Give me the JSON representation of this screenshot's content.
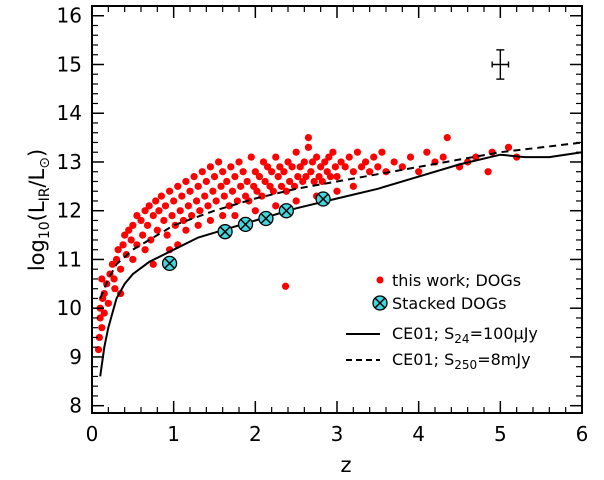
{
  "chart_data": {
    "type": "scatter",
    "xlabel": "z",
    "ylabel_parts": {
      "prefix": "log",
      "sub10": "10",
      "open": "(L",
      "subIR": "IR",
      "slash": "/L",
      "sun": "⊙",
      "close": ")"
    },
    "xlim": [
      0,
      6
    ],
    "ylim": [
      7.85,
      16.2
    ],
    "xticks": [
      "0",
      "1",
      "2",
      "3",
      "4",
      "5",
      "6"
    ],
    "yticks": [
      "8",
      "9",
      "10",
      "11",
      "12",
      "13",
      "14",
      "15",
      "16"
    ],
    "colors": {
      "dogs": "#ff0000",
      "stacked_fill": "#40d8e0",
      "line": "#000000"
    },
    "series": [
      {
        "name": "this work; DOGs",
        "style": "red-filled-circle",
        "points": [
          [
            0.08,
            9.15
          ],
          [
            0.09,
            9.4
          ],
          [
            0.1,
            9.8
          ],
          [
            0.1,
            10.0
          ],
          [
            0.12,
            9.6
          ],
          [
            0.13,
            10.2
          ],
          [
            0.15,
            10.3
          ],
          [
            0.18,
            10.5
          ],
          [
            0.2,
            10.1
          ],
          [
            0.22,
            10.7
          ],
          [
            0.25,
            10.9
          ],
          [
            0.27,
            10.6
          ],
          [
            0.3,
            11.0
          ],
          [
            0.32,
            11.2
          ],
          [
            0.35,
            10.8
          ],
          [
            0.38,
            11.3
          ],
          [
            0.4,
            11.5
          ],
          [
            0.42,
            11.1
          ],
          [
            0.45,
            11.6
          ],
          [
            0.48,
            11.4
          ],
          [
            0.5,
            11.7
          ],
          [
            0.5,
            11.0
          ],
          [
            0.55,
            11.9
          ],
          [
            0.55,
            11.3
          ],
          [
            0.6,
            11.8
          ],
          [
            0.62,
            11.5
          ],
          [
            0.65,
            12.0
          ],
          [
            0.68,
            11.7
          ],
          [
            0.7,
            12.1
          ],
          [
            0.72,
            11.4
          ],
          [
            0.75,
            11.9
          ],
          [
            0.78,
            12.2
          ],
          [
            0.8,
            11.6
          ],
          [
            0.82,
            12.0
          ],
          [
            0.85,
            12.3
          ],
          [
            0.88,
            11.8
          ],
          [
            0.9,
            12.1
          ],
          [
            0.92,
            11.5
          ],
          [
            0.95,
            12.4
          ],
          [
            0.98,
            11.9
          ],
          [
            1.0,
            12.2
          ],
          [
            1.02,
            11.7
          ],
          [
            1.05,
            12.5
          ],
          [
            1.08,
            12.0
          ],
          [
            1.1,
            12.3
          ],
          [
            1.12,
            11.8
          ],
          [
            1.15,
            12.6
          ],
          [
            1.18,
            12.1
          ],
          [
            1.2,
            12.4
          ],
          [
            1.22,
            11.9
          ],
          [
            1.25,
            12.7
          ],
          [
            1.28,
            12.2
          ],
          [
            1.3,
            12.5
          ],
          [
            1.32,
            12.0
          ],
          [
            1.35,
            12.8
          ],
          [
            1.38,
            12.3
          ],
          [
            1.4,
            12.6
          ],
          [
            1.42,
            12.1
          ],
          [
            1.45,
            12.9
          ],
          [
            1.48,
            12.4
          ],
          [
            1.5,
            12.7
          ],
          [
            1.52,
            12.2
          ],
          [
            1.55,
            13.0
          ],
          [
            1.58,
            12.5
          ],
          [
            1.6,
            12.8
          ],
          [
            1.62,
            12.3
          ],
          [
            1.65,
            12.6
          ],
          [
            1.68,
            12.1
          ],
          [
            1.7,
            12.9
          ],
          [
            1.72,
            12.4
          ],
          [
            1.75,
            12.7
          ],
          [
            1.78,
            12.2
          ],
          [
            1.8,
            13.0
          ],
          [
            1.82,
            12.5
          ],
          [
            1.85,
            12.8
          ],
          [
            1.88,
            12.3
          ],
          [
            1.9,
            12.6
          ],
          [
            1.92,
            12.2
          ],
          [
            1.95,
            13.1
          ],
          [
            1.98,
            12.5
          ],
          [
            2.0,
            12.8
          ],
          [
            2.02,
            12.4
          ],
          [
            2.05,
            12.7
          ],
          [
            2.08,
            12.3
          ],
          [
            2.1,
            13.0
          ],
          [
            2.12,
            12.6
          ],
          [
            2.15,
            12.9
          ],
          [
            2.18,
            12.5
          ],
          [
            2.2,
            12.8
          ],
          [
            2.22,
            12.4
          ],
          [
            2.25,
            13.1
          ],
          [
            2.28,
            12.7
          ],
          [
            2.3,
            12.9
          ],
          [
            2.32,
            12.5
          ],
          [
            2.35,
            12.8
          ],
          [
            2.38,
            12.4
          ],
          [
            2.4,
            13.0
          ],
          [
            2.42,
            12.6
          ],
          [
            2.45,
            12.9
          ],
          [
            2.48,
            12.5
          ],
          [
            2.5,
            13.2
          ],
          [
            2.52,
            12.7
          ],
          [
            2.55,
            12.9
          ],
          [
            2.58,
            12.6
          ],
          [
            2.6,
            13.0
          ],
          [
            2.62,
            12.7
          ],
          [
            2.65,
            13.3
          ],
          [
            2.68,
            12.8
          ],
          [
            2.7,
            13.0
          ],
          [
            2.72,
            12.6
          ],
          [
            2.75,
            13.1
          ],
          [
            2.78,
            12.7
          ],
          [
            2.8,
            12.9
          ],
          [
            2.82,
            12.6
          ],
          [
            2.85,
            13.0
          ],
          [
            2.88,
            12.8
          ],
          [
            2.9,
            13.1
          ],
          [
            2.92,
            12.7
          ],
          [
            2.95,
            13.2
          ],
          [
            2.98,
            12.9
          ],
          [
            3.0,
            12.7
          ],
          [
            3.05,
            13.0
          ],
          [
            3.1,
            12.9
          ],
          [
            3.15,
            13.1
          ],
          [
            3.2,
            12.8
          ],
          [
            3.25,
            13.2
          ],
          [
            3.3,
            12.9
          ],
          [
            3.35,
            13.0
          ],
          [
            3.4,
            12.8
          ],
          [
            3.45,
            13.1
          ],
          [
            3.5,
            12.9
          ],
          [
            3.55,
            13.2
          ],
          [
            3.6,
            12.8
          ],
          [
            3.7,
            13.0
          ],
          [
            3.8,
            12.9
          ],
          [
            3.9,
            13.1
          ],
          [
            4.0,
            12.8
          ],
          [
            4.1,
            13.2
          ],
          [
            4.2,
            13.0
          ],
          [
            4.3,
            13.1
          ],
          [
            4.35,
            13.5
          ],
          [
            4.5,
            12.9
          ],
          [
            4.6,
            13.0
          ],
          [
            4.7,
            13.1
          ],
          [
            4.9,
            13.2
          ],
          [
            5.1,
            13.3
          ],
          [
            5.2,
            13.1
          ],
          [
            2.65,
            13.5
          ],
          [
            2.37,
            10.45
          ],
          [
            4.85,
            12.8
          ],
          [
            0.65,
            11.2
          ],
          [
            0.75,
            10.9
          ],
          [
            0.95,
            11.2
          ],
          [
            1.05,
            11.3
          ],
          [
            1.15,
            11.6
          ],
          [
            1.3,
            11.7
          ],
          [
            1.45,
            11.8
          ],
          [
            1.6,
            11.9
          ],
          [
            1.75,
            11.9
          ],
          [
            2.0,
            12.0
          ],
          [
            2.25,
            12.1
          ],
          [
            2.5,
            12.2
          ],
          [
            2.75,
            12.3
          ],
          [
            3.0,
            12.4
          ],
          [
            3.2,
            12.5
          ],
          [
            0.35,
            10.3
          ],
          [
            0.28,
            10.4
          ],
          [
            0.15,
            9.9
          ],
          [
            0.12,
            10.6
          ]
        ]
      },
      {
        "name": "Stacked DOGs",
        "style": "cyan-circle-with-x",
        "points": [
          [
            0.95,
            10.92
          ],
          [
            1.63,
            11.57
          ],
          [
            1.88,
            11.72
          ],
          [
            2.13,
            11.84
          ],
          [
            2.38,
            12.0
          ],
          [
            2.83,
            12.24
          ]
        ]
      },
      {
        "name": "CE01; S24=100μJy",
        "style": "solid-line",
        "points": [
          [
            0.1,
            8.6
          ],
          [
            0.15,
            9.2
          ],
          [
            0.2,
            9.6
          ],
          [
            0.3,
            10.2
          ],
          [
            0.4,
            10.5
          ],
          [
            0.5,
            10.7
          ],
          [
            0.7,
            10.95
          ],
          [
            1.0,
            11.2
          ],
          [
            1.3,
            11.45
          ],
          [
            1.6,
            11.6
          ],
          [
            2.0,
            11.8
          ],
          [
            2.5,
            12.05
          ],
          [
            3.0,
            12.25
          ],
          [
            3.5,
            12.45
          ],
          [
            4.0,
            12.7
          ],
          [
            4.5,
            12.95
          ],
          [
            5.0,
            13.15
          ],
          [
            5.3,
            13.1
          ],
          [
            5.6,
            13.1
          ],
          [
            6.0,
            13.2
          ]
        ]
      },
      {
        "name": "CE01; S250=8mJy",
        "style": "dashed-line",
        "points": [
          [
            0.1,
            10.2
          ],
          [
            0.2,
            10.6
          ],
          [
            0.3,
            10.9
          ],
          [
            0.5,
            11.2
          ],
          [
            0.8,
            11.5
          ],
          [
            1.0,
            11.7
          ],
          [
            1.5,
            12.0
          ],
          [
            2.0,
            12.25
          ],
          [
            2.5,
            12.45
          ],
          [
            3.0,
            12.6
          ],
          [
            3.5,
            12.75
          ],
          [
            4.0,
            12.9
          ],
          [
            4.5,
            13.05
          ],
          [
            5.0,
            13.2
          ],
          [
            5.5,
            13.3
          ],
          [
            6.0,
            13.4
          ]
        ]
      }
    ],
    "error_bar": {
      "x": 5.0,
      "y": 15.0,
      "xerr": 0.1,
      "yerr": 0.3
    },
    "legend": {
      "placement": "bottom-right",
      "entries": [
        {
          "text": "this work; DOGs"
        },
        {
          "text": "Stacked DOGs"
        },
        {
          "pre": "CE01; S",
          "sub": "24",
          "post": "=100μJy"
        },
        {
          "pre": "CE01; S",
          "sub": "250",
          "post": "=8mJy"
        }
      ]
    }
  }
}
